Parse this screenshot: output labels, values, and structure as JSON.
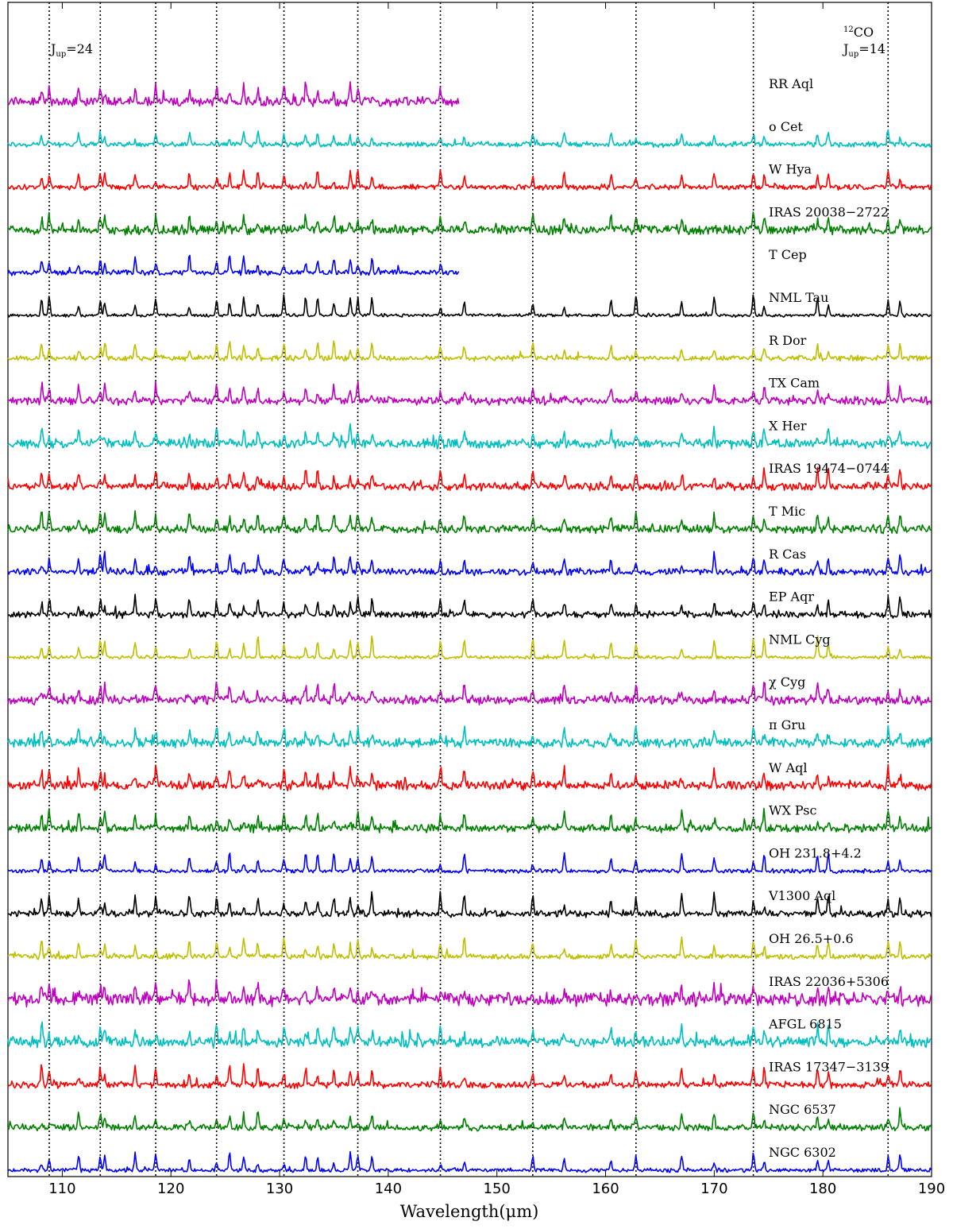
{
  "chart_data": {
    "type": "line",
    "xlabel": "Wavelength(μm)",
    "xlim": [
      105,
      190
    ],
    "xticks": [
      110,
      120,
      130,
      140,
      150,
      160,
      170,
      180,
      190
    ],
    "xtick_labels": [
      "110",
      "120",
      "130",
      "140",
      "150",
      "160",
      "170",
      "180",
      "190"
    ],
    "annotations": {
      "left_line_label": "J",
      "left_line_sub": "up",
      "left_line_value": "=24",
      "right_species_sup": "12",
      "right_species": "CO",
      "right_line_label": "J",
      "right_line_sub": "up",
      "right_line_value": "=14"
    },
    "co_line_wavelengths": [
      108.8,
      113.5,
      118.6,
      124.2,
      130.4,
      137.2,
      144.8,
      153.3,
      162.8,
      173.6,
      186.0
    ],
    "common_lines": [
      108.1,
      108.8,
      111.5,
      113.5,
      113.9,
      116.7,
      118.6,
      121.7,
      124.2,
      125.4,
      126.7,
      128.0,
      130.4,
      132.4,
      133.5,
      135.0,
      136.5,
      137.2,
      138.5,
      144.8,
      147.0,
      153.3,
      156.2,
      160.5,
      162.8,
      167.0,
      170.0,
      173.6,
      174.6,
      179.5,
      180.5,
      186.0,
      187.1
    ],
    "series": [
      {
        "name": "RR Aql",
        "color": "#bf00bf",
        "x_range": [
          105,
          146.5
        ],
        "noise": 0.35,
        "peak": 0.8,
        "seed": 1
      },
      {
        "name": "o Cet",
        "color": "#00bfbf",
        "x_range": [
          105,
          190
        ],
        "noise": 0.2,
        "peak": 0.65,
        "seed": 2
      },
      {
        "name": "W Hya",
        "color": "#ff0000",
        "x_range": [
          105,
          190
        ],
        "noise": 0.2,
        "peak": 0.8,
        "seed": 3
      },
      {
        "name": "IRAS 20038−2722",
        "color": "#008000",
        "x_range": [
          105,
          190
        ],
        "noise": 0.35,
        "peak": 0.75,
        "seed": 4
      },
      {
        "name": "T Cep",
        "color": "#0000ff",
        "x_range": [
          105,
          146.5
        ],
        "noise": 0.2,
        "peak": 0.85,
        "seed": 5
      },
      {
        "name": "NML Tau",
        "color": "#000000",
        "x_range": [
          105,
          190
        ],
        "noise": 0.12,
        "peak": 1.0,
        "seed": 6
      },
      {
        "name": "R Dor",
        "color": "#bfbf00",
        "x_range": [
          105,
          190
        ],
        "noise": 0.2,
        "peak": 0.8,
        "seed": 7
      },
      {
        "name": "TX Cam",
        "color": "#bf00bf",
        "x_range": [
          105,
          190
        ],
        "noise": 0.3,
        "peak": 0.8,
        "seed": 8
      },
      {
        "name": "X Her",
        "color": "#00bfbf",
        "x_range": [
          105,
          190
        ],
        "noise": 0.35,
        "peak": 0.75,
        "seed": 9
      },
      {
        "name": "IRAS 19474−0744",
        "color": "#ff0000",
        "x_range": [
          105,
          190
        ],
        "noise": 0.3,
        "peak": 0.8,
        "seed": 10
      },
      {
        "name": "T Mic",
        "color": "#008000",
        "x_range": [
          105,
          190
        ],
        "noise": 0.3,
        "peak": 0.8,
        "seed": 11
      },
      {
        "name": "R Cas",
        "color": "#0000ff",
        "x_range": [
          105,
          190
        ],
        "noise": 0.25,
        "peak": 0.85,
        "seed": 12
      },
      {
        "name": "EP Aqr",
        "color": "#000000",
        "x_range": [
          105,
          190
        ],
        "noise": 0.25,
        "peak": 0.8,
        "seed": 13
      },
      {
        "name": "NML Cyg",
        "color": "#bfbf00",
        "x_range": [
          105,
          190
        ],
        "noise": 0.12,
        "peak": 1.0,
        "seed": 14
      },
      {
        "name": "χ Cyg",
        "color": "#bf00bf",
        "x_range": [
          105,
          190
        ],
        "noise": 0.35,
        "peak": 0.8,
        "seed": 15
      },
      {
        "name": "π Gru",
        "color": "#00bfbf",
        "x_range": [
          105,
          190
        ],
        "noise": 0.35,
        "peak": 0.8,
        "seed": 16
      },
      {
        "name": "W Aql",
        "color": "#ff0000",
        "x_range": [
          105,
          190
        ],
        "noise": 0.35,
        "peak": 0.85,
        "seed": 17
      },
      {
        "name": "WX Psc",
        "color": "#008000",
        "x_range": [
          105,
          190
        ],
        "noise": 0.3,
        "peak": 0.85,
        "seed": 18
      },
      {
        "name": "OH 231.8+4.2",
        "color": "#0000ff",
        "x_range": [
          105,
          190
        ],
        "noise": 0.15,
        "peak": 0.85,
        "seed": 19
      },
      {
        "name": "V1300 Aql",
        "color": "#000000",
        "x_range": [
          105,
          190
        ],
        "noise": 0.25,
        "peak": 1.0,
        "seed": 20
      },
      {
        "name": "OH 26.5+0.6",
        "color": "#bfbf00",
        "x_range": [
          105,
          190
        ],
        "noise": 0.2,
        "peak": 0.9,
        "seed": 21
      },
      {
        "name": "IRAS 22036+5306",
        "color": "#bf00bf",
        "x_range": [
          105,
          190
        ],
        "noise": 0.5,
        "peak": 0.7,
        "seed": 22
      },
      {
        "name": "AFGL 6815",
        "color": "#00bfbf",
        "x_range": [
          105,
          190
        ],
        "noise": 0.4,
        "peak": 0.75,
        "seed": 23
      },
      {
        "name": "IRAS 17347−3139",
        "color": "#ff0000",
        "x_range": [
          105,
          190
        ],
        "noise": 0.25,
        "peak": 0.9,
        "seed": 24
      },
      {
        "name": "NGC 6537",
        "color": "#008000",
        "x_range": [
          105,
          190
        ],
        "noise": 0.25,
        "peak": 0.7,
        "seed": 25
      },
      {
        "name": "NGC 6302",
        "color": "#0000ff",
        "x_range": [
          105,
          190
        ],
        "noise": 0.15,
        "peak": 0.8,
        "seed": 26
      }
    ]
  }
}
